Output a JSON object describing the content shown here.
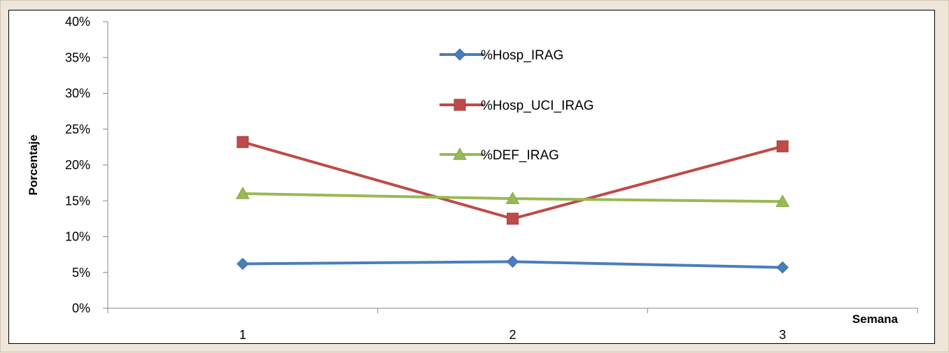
{
  "chart_data": {
    "type": "line",
    "categories": [
      "1",
      "2",
      "3"
    ],
    "xlabel": "Semana",
    "ylabel": "Porcentaje",
    "ylim": [
      0,
      40
    ],
    "yticks": [
      "0%",
      "5%",
      "10%",
      "15%",
      "20%",
      "25%",
      "30%",
      "35%",
      "40%"
    ],
    "grid": false,
    "legend": "top-center",
    "series": [
      {
        "name": "%Hosp_IRAG",
        "values": [
          6.2,
          6.5,
          5.7
        ],
        "color": "#4a7ebb",
        "marker": "diamond"
      },
      {
        "name": "%Hosp_UCI_IRAG",
        "values": [
          23.2,
          12.5,
          22.6
        ],
        "color": "#be4b48",
        "marker": "square"
      },
      {
        "name": "%DEF_IRAG",
        "values": [
          16.0,
          15.3,
          14.9
        ],
        "color": "#98b954",
        "marker": "triangle"
      }
    ]
  }
}
